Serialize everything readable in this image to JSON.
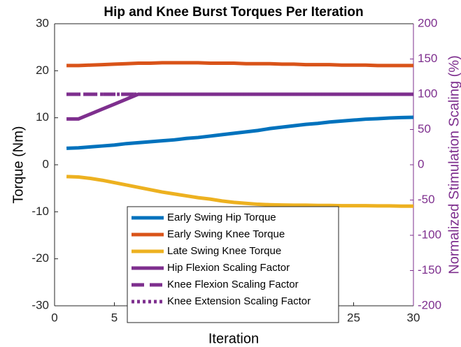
{
  "chart_data": {
    "type": "line",
    "title": "Hip and Knee Burst Torques Per Iteration",
    "xlabel": "Iteration",
    "ylabel": "Torque (Nm)",
    "y2label": "Normalized Stimulation Scaling (%)",
    "x": [
      1,
      2,
      3,
      4,
      5,
      6,
      7,
      8,
      9,
      10,
      11,
      12,
      13,
      14,
      15,
      16,
      17,
      18,
      19,
      20,
      21,
      22,
      23,
      24,
      25,
      26,
      27,
      28,
      29,
      30
    ],
    "xlim": [
      0,
      30
    ],
    "xticks": [
      0,
      5,
      10,
      15,
      20,
      25,
      30
    ],
    "ylim": [
      -30,
      30
    ],
    "yticks": [
      -30,
      -20,
      -10,
      0,
      10,
      20,
      30
    ],
    "y2lim": [
      -200,
      200
    ],
    "y2ticks": [
      -200,
      -150,
      -100,
      -50,
      0,
      50,
      100,
      150,
      200
    ],
    "y2color": "#7E2F8E",
    "legend": "bottom",
    "series": [
      {
        "name": "Early Swing Hip Torque",
        "color": "#0072BD",
        "dash": "solid",
        "values": [
          3.5,
          3.6,
          3.8,
          4.0,
          4.2,
          4.5,
          4.7,
          4.9,
          5.1,
          5.3,
          5.6,
          5.8,
          6.1,
          6.4,
          6.7,
          7.0,
          7.3,
          7.7,
          8.0,
          8.3,
          8.6,
          8.8,
          9.1,
          9.3,
          9.5,
          9.7,
          9.8,
          9.95,
          10.05,
          10.1
        ]
      },
      {
        "name": "Early Swing Knee Torque",
        "color": "#D95319",
        "dash": "solid",
        "values": [
          21.1,
          21.1,
          21.2,
          21.3,
          21.4,
          21.5,
          21.6,
          21.6,
          21.7,
          21.7,
          21.7,
          21.7,
          21.6,
          21.6,
          21.6,
          21.5,
          21.5,
          21.5,
          21.4,
          21.4,
          21.3,
          21.3,
          21.3,
          21.2,
          21.2,
          21.2,
          21.1,
          21.1,
          21.1,
          21.1
        ]
      },
      {
        "name": "Late Swing Knee Torque",
        "color": "#EDB120",
        "dash": "solid",
        "values": [
          -2.5,
          -2.6,
          -2.9,
          -3.3,
          -3.8,
          -4.3,
          -4.8,
          -5.3,
          -5.8,
          -6.2,
          -6.6,
          -7.0,
          -7.3,
          -7.7,
          -8.0,
          -8.2,
          -8.4,
          -8.5,
          -8.55,
          -8.6,
          -8.6,
          -8.65,
          -8.65,
          -8.7,
          -8.7,
          -8.7,
          -8.75,
          -8.75,
          -8.8,
          -8.8
        ]
      },
      {
        "name": "Hip Flexion Scaling Factor",
        "color": "#7E2F8E",
        "dash": "solid",
        "axis": "y2",
        "values": [
          65,
          65,
          72,
          79,
          86,
          93,
          100,
          100,
          100,
          100,
          100,
          100,
          100,
          100,
          100,
          100,
          100,
          100,
          100,
          100,
          100,
          100,
          100,
          100,
          100,
          100,
          100,
          100,
          100,
          100
        ]
      },
      {
        "name": "Knee Flexion Scaling Factor",
        "color": "#7E2F8E",
        "dash": "dashed",
        "axis": "y2",
        "values": [
          100,
          100,
          100,
          100,
          100,
          100,
          100,
          100,
          100,
          100,
          100,
          100,
          100,
          100,
          100,
          100,
          100,
          100,
          100,
          100,
          100,
          100,
          100,
          100,
          100,
          100,
          100,
          100,
          100,
          100
        ]
      },
      {
        "name": "Knee Extension Scaling Factor",
        "color": "#7E2F8E",
        "dash": "dotted",
        "axis": "y2",
        "values": [
          100,
          100,
          100,
          100,
          100,
          100,
          100,
          100,
          100,
          100,
          100,
          100,
          100,
          100,
          100,
          100,
          100,
          100,
          100,
          100,
          100,
          100,
          100,
          100,
          100,
          100,
          100,
          100,
          100,
          100
        ]
      }
    ]
  }
}
